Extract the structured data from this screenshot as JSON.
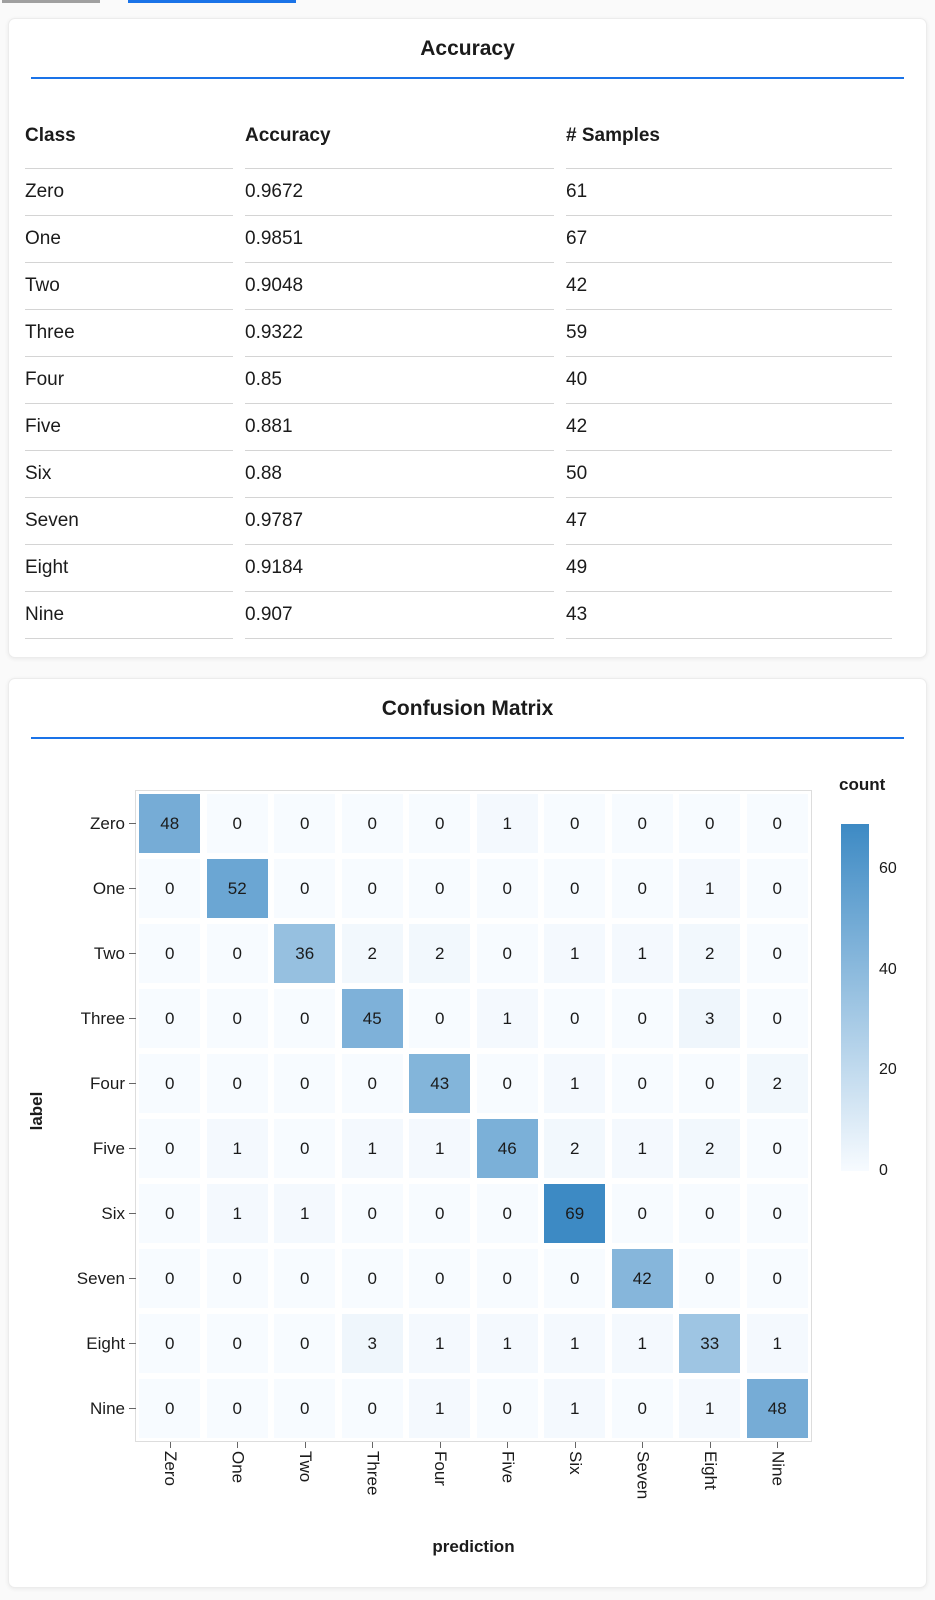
{
  "page": {
    "background": "#fafafa",
    "accent": "#1a73e8",
    "top_strip": {
      "gray_color": "#a0a0a0",
      "blue_color": "#1a73e8"
    }
  },
  "chart_data": [
    {
      "type": "table",
      "title": "Accuracy",
      "columns": [
        "Class",
        "Accuracy",
        "# Samples"
      ],
      "rows": [
        [
          "Zero",
          0.9672,
          61
        ],
        [
          "One",
          0.9851,
          67
        ],
        [
          "Two",
          0.9048,
          42
        ],
        [
          "Three",
          0.9322,
          59
        ],
        [
          "Four",
          0.85,
          40
        ],
        [
          "Five",
          0.881,
          42
        ],
        [
          "Six",
          0.88,
          50
        ],
        [
          "Seven",
          0.9787,
          47
        ],
        [
          "Eight",
          0.9184,
          49
        ],
        [
          "Nine",
          0.907,
          43
        ]
      ]
    },
    {
      "type": "heatmap",
      "title": "Confusion Matrix",
      "xlabel": "prediction",
      "ylabel": "label",
      "legend": "count",
      "x_categories": [
        "Zero",
        "One",
        "Two",
        "Three",
        "Four",
        "Five",
        "Six",
        "Seven",
        "Eight",
        "Nine"
      ],
      "y_categories": [
        "Zero",
        "One",
        "Two",
        "Three",
        "Four",
        "Five",
        "Six",
        "Seven",
        "Eight",
        "Nine"
      ],
      "values": [
        [
          48,
          0,
          0,
          0,
          0,
          1,
          0,
          0,
          0,
          0
        ],
        [
          0,
          52,
          0,
          0,
          0,
          0,
          0,
          0,
          1,
          0
        ],
        [
          0,
          0,
          36,
          2,
          2,
          0,
          1,
          1,
          2,
          0
        ],
        [
          0,
          0,
          0,
          45,
          0,
          1,
          0,
          0,
          3,
          0
        ],
        [
          0,
          0,
          0,
          0,
          43,
          0,
          1,
          0,
          0,
          2
        ],
        [
          0,
          1,
          0,
          1,
          1,
          46,
          2,
          1,
          2,
          0
        ],
        [
          0,
          1,
          1,
          0,
          0,
          0,
          69,
          0,
          0,
          0
        ],
        [
          0,
          0,
          0,
          0,
          0,
          0,
          0,
          42,
          0,
          0
        ],
        [
          0,
          0,
          0,
          3,
          1,
          1,
          1,
          1,
          33,
          1
        ],
        [
          0,
          0,
          0,
          0,
          1,
          0,
          1,
          0,
          1,
          48
        ]
      ],
      "color_range": [
        0,
        69
      ],
      "color_low": "#f7fbff",
      "color_high": "#3d8ac4",
      "legend_ticks": [
        0,
        20,
        40,
        60
      ],
      "legend_position": "right",
      "grid": false
    }
  ]
}
